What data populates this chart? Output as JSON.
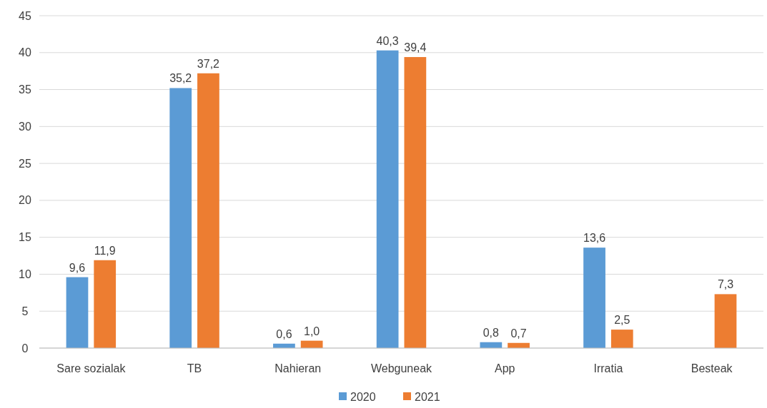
{
  "chart_data": {
    "type": "bar",
    "categories": [
      "Sare sozialak",
      "TB",
      "Nahieran",
      "Webguneak",
      "App",
      "Irratia",
      "Besteak"
    ],
    "series": [
      {
        "name": "2020",
        "color": "#5b9bd5",
        "values": [
          9.6,
          35.2,
          0.6,
          40.3,
          0.8,
          13.6,
          null
        ],
        "value_labels": [
          "9,6",
          "35,2",
          "0,6",
          "40,3",
          "0,8",
          "13,6",
          null
        ]
      },
      {
        "name": "2021",
        "color": "#ed7d31",
        "values": [
          11.9,
          37.2,
          1.0,
          39.4,
          0.7,
          2.5,
          7.3
        ],
        "value_labels": [
          "11,9",
          "37,2",
          "1,0",
          "39,4",
          "0,7",
          "2,5",
          "7,3"
        ]
      }
    ],
    "ylim": [
      0,
      45
    ],
    "yticks": [
      0,
      5,
      10,
      15,
      20,
      25,
      30,
      35,
      40,
      45
    ],
    "grid": "y",
    "legend": "bottom"
  }
}
